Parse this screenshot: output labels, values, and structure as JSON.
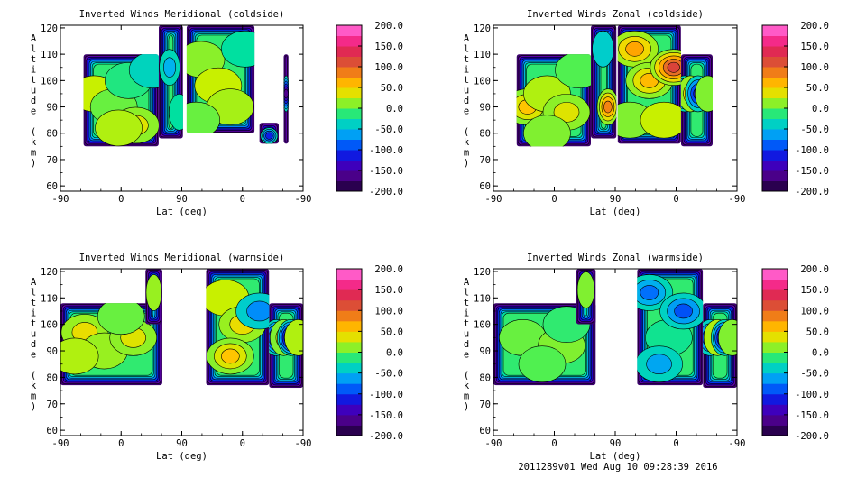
{
  "footer": "2011289v01 Wed Aug 10 09:28:39 2016",
  "chart_data": [
    {
      "type": "heatmap",
      "title": "Inverted Winds Meridional (coldside)",
      "xlabel": "Lat (deg)",
      "ylabel": "Altitude (km)",
      "xticks": [
        "-90",
        "0",
        "90",
        "0",
        "-90"
      ],
      "yticks": [
        "60",
        "70",
        "80",
        "90",
        "100",
        "110",
        "120"
      ],
      "ylim": [
        58,
        121
      ],
      "colorbar": [
        "200.0",
        "150.0",
        "100.0",
        "50.0",
        "0.0",
        "-50.0",
        "-100.0",
        "-150.0",
        "-200.0"
      ],
      "zlim": [
        -200,
        200
      ],
      "blocks": [
        {
          "x0": 0.095,
          "x1": 0.405,
          "alt0": 75,
          "alt1": 110,
          "ridges": [
            {
              "x": 0.14,
              "alt": 95,
              "v": 25
            },
            {
              "x": 0.22,
              "alt": 90,
              "v": 5
            },
            {
              "x": 0.31,
              "alt": 83,
              "v": 35
            },
            {
              "x": 0.24,
              "alt": 82,
              "v": 20
            },
            {
              "x": 0.28,
              "alt": 100,
              "v": -15
            },
            {
              "x": 0.38,
              "alt": 104,
              "v": -35
            }
          ]
        },
        {
          "x0": 0.405,
          "x1": 0.505,
          "alt0": 78,
          "alt1": 121,
          "ridges": [
            {
              "x": 0.45,
              "alt": 105,
              "v": -55
            },
            {
              "x": 0.49,
              "alt": 88,
              "v": -25
            }
          ]
        },
        {
          "x0": 0.52,
          "x1": 0.8,
          "alt0": 80,
          "alt1": 121,
          "ridges": [
            {
              "x": 0.58,
              "alt": 108,
              "v": 12
            },
            {
              "x": 0.65,
              "alt": 98,
              "v": 25
            },
            {
              "x": 0.7,
              "alt": 90,
              "v": 18
            },
            {
              "x": 0.76,
              "alt": 112,
              "v": -25
            },
            {
              "x": 0.56,
              "alt": 85,
              "v": 5
            }
          ]
        },
        {
          "x0": 0.82,
          "x1": 0.9,
          "alt0": 76,
          "alt1": 84,
          "ridges": [
            {
              "x": 0.86,
              "alt": 79,
              "v": -110
            }
          ]
        },
        {
          "x0": 0.92,
          "x1": 0.94,
          "alt0": 76,
          "alt1": 110,
          "ridges": [
            {
              "x": 0.93,
              "alt": 95,
              "v": -160
            }
          ]
        }
      ]
    },
    {
      "type": "heatmap",
      "title": "Inverted Winds Zonal (coldside)",
      "xlabel": "Lat (deg)",
      "ylabel": "Altitude (km)",
      "xticks": [
        "-90",
        "0",
        "90",
        "0",
        "-90"
      ],
      "yticks": [
        "60",
        "70",
        "80",
        "90",
        "100",
        "110",
        "120"
      ],
      "ylim": [
        58,
        121
      ],
      "colorbar": [
        "200.0",
        "150.0",
        "100.0",
        "50.0",
        "0.0",
        "-50.0",
        "-100.0",
        "-150.0",
        "-200.0"
      ],
      "zlim": [
        -200,
        200
      ],
      "blocks": [
        {
          "x0": 0.095,
          "x1": 0.4,
          "alt0": 75,
          "alt1": 110,
          "ridges": [
            {
              "x": 0.14,
              "alt": 90,
              "v": 55
            },
            {
              "x": 0.22,
              "alt": 95,
              "v": 20
            },
            {
              "x": 0.3,
              "alt": 88,
              "v": 35
            },
            {
              "x": 0.35,
              "alt": 104,
              "v": 0
            },
            {
              "x": 0.22,
              "alt": 80,
              "v": 10
            }
          ]
        },
        {
          "x0": 0.4,
          "x1": 0.505,
          "alt0": 78,
          "alt1": 121,
          "ridges": [
            {
              "x": 0.47,
              "alt": 90,
              "v": 85
            },
            {
              "x": 0.45,
              "alt": 112,
              "v": -40
            }
          ]
        },
        {
          "x0": 0.51,
          "x1": 0.77,
          "alt0": 76,
          "alt1": 121,
          "ridges": [
            {
              "x": 0.58,
              "alt": 112,
              "v": 70
            },
            {
              "x": 0.64,
              "alt": 100,
              "v": 60
            },
            {
              "x": 0.74,
              "alt": 105,
              "v": 120
            },
            {
              "x": 0.56,
              "alt": 85,
              "v": 10
            },
            {
              "x": 0.7,
              "alt": 85,
              "v": 25
            }
          ]
        },
        {
          "x0": 0.77,
          "x1": 0.9,
          "alt0": 75,
          "alt1": 110,
          "ridges": [
            {
              "x": 0.785,
              "alt": 95,
              "v": -150
            },
            {
              "x": 0.81,
              "alt": 95,
              "v": 40
            },
            {
              "x": 0.84,
              "alt": 95,
              "v": -120
            },
            {
              "x": 0.88,
              "alt": 95,
              "v": 10
            }
          ]
        }
      ]
    },
    {
      "type": "heatmap",
      "title": "Inverted Winds Meridional (warmside)",
      "xlabel": "Lat (deg)",
      "ylabel": "Altitude (km)",
      "xticks": [
        "-90",
        "0",
        "90",
        "0",
        "-90"
      ],
      "yticks": [
        "60",
        "70",
        "80",
        "90",
        "100",
        "110",
        "120"
      ],
      "ylim": [
        58,
        121
      ],
      "colorbar": [
        "200.0",
        "150.0",
        "100.0",
        "50.0",
        "0.0",
        "-50.0",
        "-100.0",
        "-150.0",
        "-200.0"
      ],
      "zlim": [
        -200,
        200
      ],
      "blocks": [
        {
          "x0": 0.0,
          "x1": 0.42,
          "alt0": 77,
          "alt1": 108,
          "ridges": [
            {
              "x": 0.1,
              "alt": 97,
              "v": 40
            },
            {
              "x": 0.18,
              "alt": 90,
              "v": 15
            },
            {
              "x": 0.3,
              "alt": 95,
              "v": 35
            },
            {
              "x": 0.06,
              "alt": 88,
              "v": 20
            },
            {
              "x": 0.25,
              "alt": 103,
              "v": 5
            }
          ]
        },
        {
          "x0": 0.35,
          "x1": 0.42,
          "alt0": 100,
          "alt1": 121,
          "ridges": [
            {
              "x": 0.385,
              "alt": 112,
              "v": 15
            }
          ]
        },
        {
          "x0": 0.6,
          "x1": 0.86,
          "alt0": 77,
          "alt1": 121,
          "ridges": [
            {
              "x": 0.68,
              "alt": 110,
              "v": 25
            },
            {
              "x": 0.75,
              "alt": 100,
              "v": 40
            },
            {
              "x": 0.7,
              "alt": 88,
              "v": 55
            },
            {
              "x": 0.82,
              "alt": 105,
              "v": -70
            }
          ]
        },
        {
          "x0": 0.86,
          "x1": 1.0,
          "alt0": 76,
          "alt1": 108,
          "ridges": [
            {
              "x": 0.89,
              "alt": 95,
              "v": -150
            },
            {
              "x": 0.92,
              "alt": 95,
              "v": 30
            },
            {
              "x": 0.95,
              "alt": 95,
              "v": -180
            },
            {
              "x": 0.98,
              "alt": 95,
              "v": 20
            }
          ]
        }
      ]
    },
    {
      "type": "heatmap",
      "title": "Inverted Winds Zonal (warmside)",
      "xlabel": "Lat (deg)",
      "ylabel": "Altitude (km)",
      "xticks": [
        "-90",
        "0",
        "90",
        "0",
        "-90"
      ],
      "yticks": [
        "60",
        "70",
        "80",
        "90",
        "100",
        "110",
        "120"
      ],
      "ylim": [
        58,
        121
      ],
      "colorbar": [
        "200.0",
        "150.0",
        "100.0",
        "50.0",
        "0.0",
        "-50.0",
        "-100.0",
        "-150.0",
        "-200.0"
      ],
      "zlim": [
        -200,
        200
      ],
      "blocks": [
        {
          "x0": 0.0,
          "x1": 0.42,
          "alt0": 77,
          "alt1": 108,
          "ridges": [
            {
              "x": 0.12,
              "alt": 95,
              "v": 5
            },
            {
              "x": 0.28,
              "alt": 92,
              "v": 10
            },
            {
              "x": 0.2,
              "alt": 85,
              "v": 0
            },
            {
              "x": 0.3,
              "alt": 100,
              "v": -10
            }
          ]
        },
        {
          "x0": 0.34,
          "x1": 0.42,
          "alt0": 100,
          "alt1": 121,
          "ridges": [
            {
              "x": 0.38,
              "alt": 113,
              "v": 10
            }
          ]
        },
        {
          "x0": 0.59,
          "x1": 0.86,
          "alt0": 77,
          "alt1": 121,
          "ridges": [
            {
              "x": 0.64,
              "alt": 112,
              "v": -80
            },
            {
              "x": 0.72,
              "alt": 95,
              "v": -20
            },
            {
              "x": 0.78,
              "alt": 105,
              "v": -90
            },
            {
              "x": 0.68,
              "alt": 85,
              "v": -60
            }
          ]
        },
        {
          "x0": 0.86,
          "x1": 1.0,
          "alt0": 76,
          "alt1": 108,
          "ridges": [
            {
              "x": 0.89,
              "alt": 95,
              "v": -120
            },
            {
              "x": 0.92,
              "alt": 95,
              "v": 20
            },
            {
              "x": 0.95,
              "alt": 95,
              "v": -170
            },
            {
              "x": 0.98,
              "alt": 95,
              "v": 10
            }
          ]
        }
      ]
    }
  ]
}
